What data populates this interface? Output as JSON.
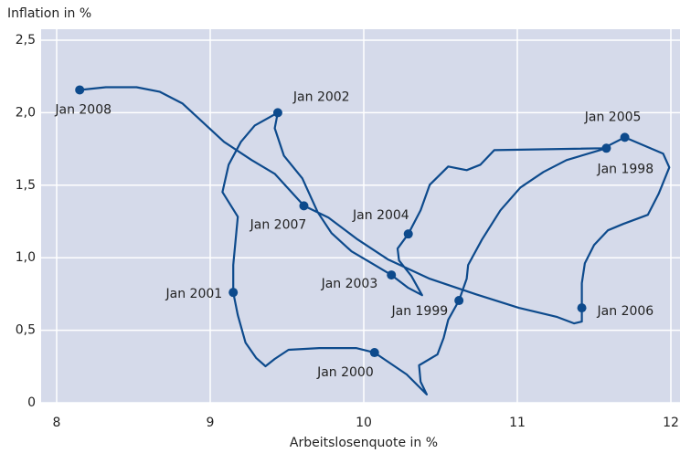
{
  "chart_data": {
    "type": "connected-scatter",
    "title": "Inflation in %",
    "x_label": "Arbeitslosenquote in %",
    "color": "#0d4a8c",
    "background": "#d5daea",
    "grid": true,
    "xlim": [
      8,
      12
    ],
    "xticks": [
      8,
      9,
      10,
      11,
      12
    ],
    "ylim": [
      0,
      2.5
    ],
    "yticks": [
      0,
      {
        "value": 0.5,
        "label": "0,5"
      },
      {
        "value": 1.0,
        "label": "1,0"
      },
      {
        "value": 1.5,
        "label": "1,5"
      },
      {
        "value": 2.0,
        "label": "2,0"
      },
      {
        "value": 2.5,
        "label": "2,5"
      }
    ],
    "x": [
      11.58,
      11.32,
      11.17,
      11.02,
      10.89,
      10.77,
      10.68,
      10.67,
      10.62,
      10.55,
      10.52,
      10.48,
      10.36,
      10.37,
      10.41,
      10.28,
      10.07,
      9.95,
      9.71,
      9.51,
      9.42,
      9.36,
      9.3,
      9.23,
      9.18,
      9.15,
      9.15,
      9.18,
      9.08,
      9.12,
      9.2,
      9.29,
      9.44,
      9.42,
      9.48,
      9.6,
      9.7,
      9.79,
      9.92,
      10.07,
      10.18,
      10.29,
      10.38,
      10.31,
      10.23,
      10.22,
      10.29,
      10.37,
      10.43,
      10.55,
      10.67,
      10.76,
      10.85,
      11.56,
      11.7,
      11.95,
      11.99,
      11.92,
      11.85,
      11.69,
      11.59,
      11.5,
      11.44,
      11.42,
      11.42,
      11.42,
      11.37,
      11.26,
      11.01,
      10.73,
      10.43,
      10.16,
      9.96,
      9.77,
      9.61,
      9.42,
      9.27,
      9.09,
      8.82,
      8.67,
      8.52,
      8.32,
      8.15
    ],
    "values": [
      1.755,
      1.673,
      1.591,
      1.484,
      1.327,
      1.126,
      0.95,
      0.855,
      0.705,
      0.572,
      0.447,
      0.333,
      0.258,
      0.145,
      0.057,
      0.195,
      0.346,
      0.377,
      0.377,
      0.365,
      0.302,
      0.252,
      0.308,
      0.415,
      0.604,
      0.761,
      0.95,
      1.283,
      1.453,
      1.642,
      1.799,
      1.912,
      2.0,
      1.893,
      1.704,
      1.547,
      1.314,
      1.17,
      1.044,
      0.95,
      0.881,
      0.792,
      0.742,
      0.874,
      0.981,
      1.063,
      1.164,
      1.327,
      1.503,
      1.629,
      1.604,
      1.642,
      1.742,
      1.755,
      1.83,
      1.717,
      1.623,
      1.44,
      1.296,
      1.233,
      1.189,
      1.088,
      0.962,
      0.824,
      0.654,
      0.56,
      0.547,
      0.591,
      0.654,
      0.748,
      0.855,
      0.987,
      1.126,
      1.277,
      1.358,
      1.579,
      1.673,
      1.799,
      2.063,
      2.145,
      2.176,
      2.176,
      2.157
    ],
    "points": {
      "labels": [
        "Jan 1998",
        "Jan 1999",
        "Jan 2000",
        "Jan 2001",
        "Jan 2002",
        "Jan 2003",
        "Jan 2004",
        "Jan 2005",
        "Jan 2006",
        "Jan 2007",
        "Jan 2008"
      ],
      "x": [
        11.58,
        10.62,
        10.07,
        9.15,
        9.44,
        10.18,
        10.29,
        11.7,
        11.42,
        9.61,
        8.15
      ],
      "values": [
        1.755,
        0.705,
        0.346,
        0.761,
        2.0,
        0.881,
        1.164,
        1.83,
        0.654,
        1.358,
        2.157
      ]
    }
  }
}
